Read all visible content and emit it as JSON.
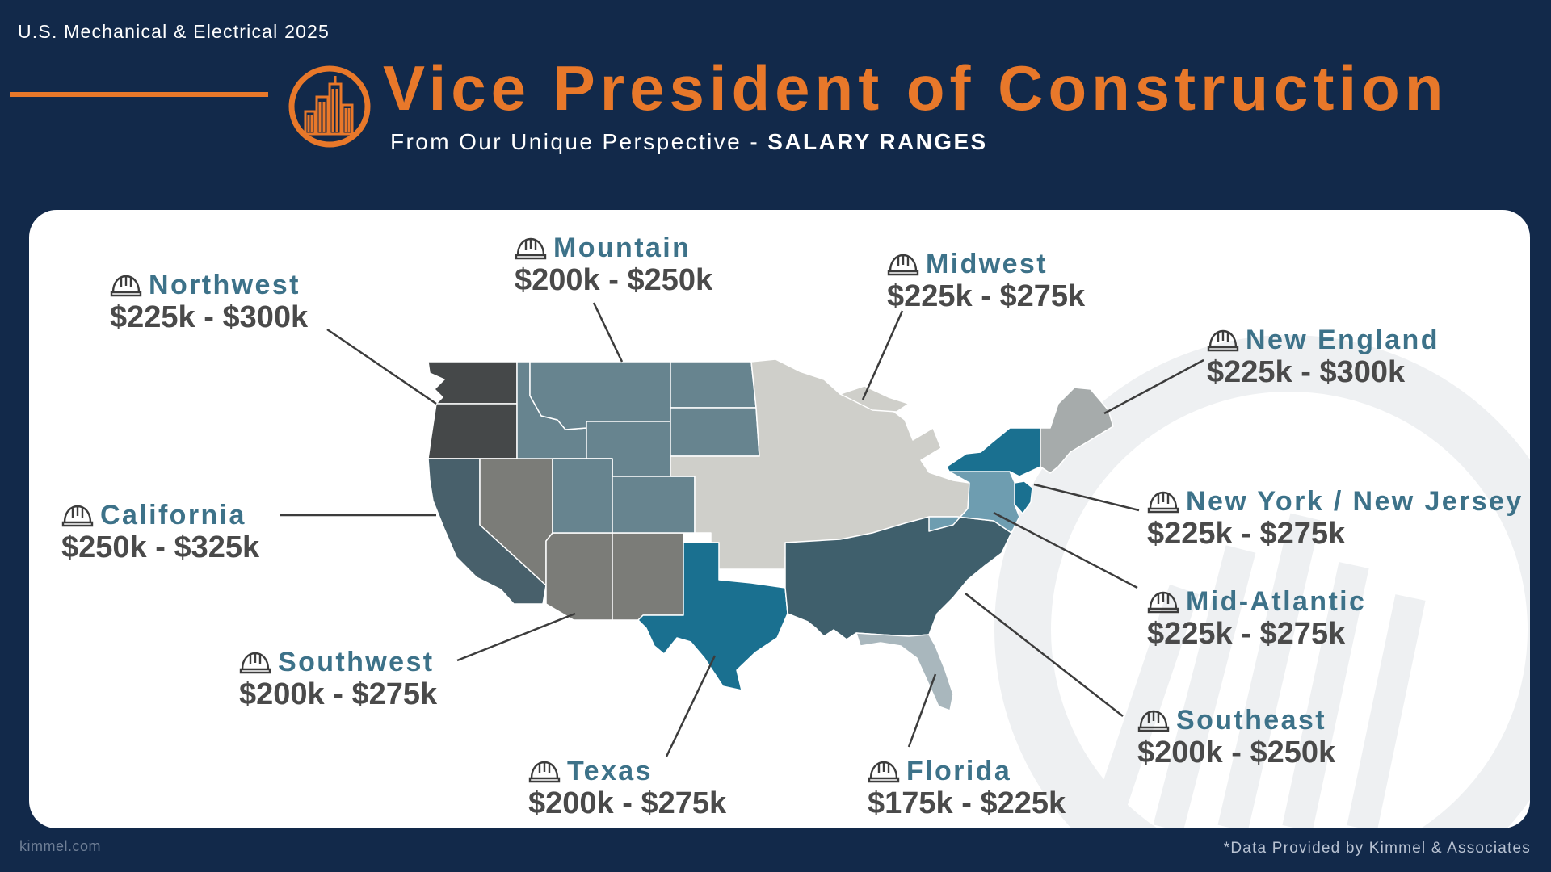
{
  "header": {
    "top_label": "U.S. Mechanical & Electrical 2025",
    "title": "Vice President of Construction",
    "subtitle_prefix": "From Our Unique Perspective - ",
    "subtitle_bold": "SALARY RANGES"
  },
  "colors": {
    "background": "#12294a",
    "accent": "#e8782a",
    "label_blue": "#3d7289",
    "range_gray": "#4a4a4a"
  },
  "regions": [
    {
      "id": "northwest",
      "name": "Northwest",
      "range": "$225k - $300k",
      "color": "#454849"
    },
    {
      "id": "california",
      "name": "California",
      "range": "$250k - $325k",
      "color": "#48606b"
    },
    {
      "id": "southwest",
      "name": "Southwest",
      "range": "$200k - $275k",
      "color": "#7b7c78"
    },
    {
      "id": "mountain",
      "name": "Mountain",
      "range": "$200k - $250k",
      "color": "#67848f"
    },
    {
      "id": "texas",
      "name": "Texas",
      "range": "$200k - $275k",
      "color": "#1a7090"
    },
    {
      "id": "midwest",
      "name": "Midwest",
      "range": "$225k - $275k",
      "color": "#cfcfca"
    },
    {
      "id": "florida",
      "name": "Florida",
      "range": "$175k - $225k",
      "color": "#a9b7bd"
    },
    {
      "id": "southeast",
      "name": "Southeast",
      "range": "$200k - $250k",
      "color": "#3f5f6c"
    },
    {
      "id": "mid_atlantic",
      "name": "Mid-Atlantic",
      "range": "$225k - $275k",
      "color": "#6e9db0"
    },
    {
      "id": "ny_nj",
      "name": "New York / New Jersey",
      "range": "$225k - $275k",
      "color": "#1a7090"
    },
    {
      "id": "new_england",
      "name": "New England",
      "range": "$225k - $300k",
      "color": "#a6abab"
    }
  ],
  "footer": {
    "left": "kimmel.com",
    "right": "*Data Provided by Kimmel & Associates"
  },
  "icons": {
    "logo": "building-circle-icon",
    "label_icon": "hard-hat-icon"
  }
}
